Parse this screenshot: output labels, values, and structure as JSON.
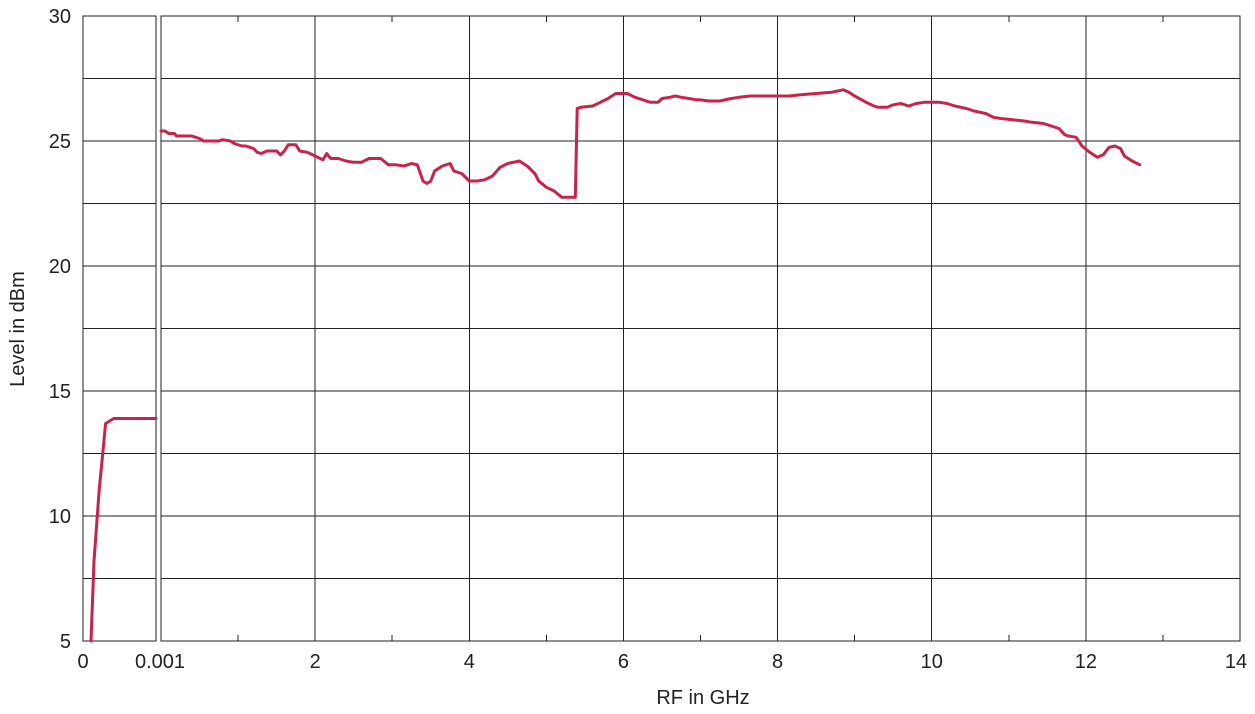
{
  "chart_data": {
    "type": "line",
    "xlabel": "RF in GHz",
    "ylabel": "Level in dBm",
    "ylim": [
      5,
      30
    ],
    "y_ticks": [
      5,
      10,
      15,
      20,
      25,
      30
    ],
    "grid": true,
    "x_axis_note": "broken axis: 0 to 0.001 GHz panel, then 0.001 to 14 GHz",
    "low_panel": {
      "xlim": [
        0,
        0.001
      ],
      "x_ticks": [
        {
          "value": 0,
          "label": "0"
        },
        {
          "value": 0.001,
          "label": "0.001"
        }
      ]
    },
    "main_panel": {
      "xlim": [
        0,
        14
      ],
      "x_ticks": [
        {
          "value": 2,
          "label": "2"
        },
        {
          "value": 4,
          "label": "4"
        },
        {
          "value": 6,
          "label": "6"
        },
        {
          "value": 8,
          "label": "8"
        },
        {
          "value": 10,
          "label": "10"
        },
        {
          "value": 12,
          "label": "12"
        },
        {
          "value": 14,
          "label": "14"
        }
      ]
    },
    "series": [
      {
        "color": "#c8234a",
        "low_points": [
          [
            0.00011,
            5.0
          ],
          [
            0.00015,
            8.2
          ],
          [
            0.00022,
            11.0
          ],
          [
            0.00031,
            13.7
          ],
          [
            0.00042,
            13.9
          ],
          [
            0.001,
            13.9
          ]
        ],
        "main_points": [
          [
            0.0,
            25.4
          ],
          [
            0.1,
            25.4
          ],
          [
            0.2,
            25.3
          ],
          [
            0.35,
            25.3
          ],
          [
            0.4,
            25.2
          ],
          [
            0.5,
            25.2
          ],
          [
            0.6,
            25.2
          ],
          [
            0.8,
            25.2
          ],
          [
            1.0,
            25.1
          ],
          [
            1.1,
            25.0
          ],
          [
            1.3,
            25.0
          ],
          [
            1.5,
            25.0
          ],
          [
            1.6,
            25.05
          ],
          [
            1.8,
            25.0
          ],
          [
            1.9,
            24.9
          ],
          [
            2.1,
            24.8
          ],
          [
            2.2,
            24.8
          ],
          [
            2.4,
            24.7
          ],
          [
            2.5,
            24.55
          ],
          [
            2.6,
            24.5
          ],
          [
            2.75,
            24.6
          ],
          [
            3.0,
            24.6
          ],
          [
            3.1,
            24.45
          ],
          [
            3.2,
            24.6
          ],
          [
            3.3,
            24.85
          ],
          [
            3.5,
            24.85
          ],
          [
            3.6,
            24.6
          ],
          [
            3.8,
            24.55
          ],
          [
            4.0,
            24.4
          ],
          [
            4.2,
            24.25
          ],
          [
            4.3,
            24.5
          ],
          [
            4.4,
            24.3
          ],
          [
            4.6,
            24.3
          ],
          [
            4.8,
            24.2
          ],
          [
            5.0,
            24.15
          ],
          [
            5.2,
            24.15
          ],
          [
            5.4,
            24.3
          ],
          [
            5.7,
            24.3
          ],
          [
            5.9,
            24.05
          ],
          [
            6.1,
            24.05
          ],
          [
            6.3,
            24.0
          ],
          [
            6.4,
            24.05
          ],
          [
            6.5,
            24.1
          ],
          [
            6.65,
            24.05
          ],
          [
            6.8,
            23.4
          ],
          [
            6.9,
            23.3
          ],
          [
            7.0,
            23.4
          ],
          [
            7.1,
            23.8
          ],
          [
            7.3,
            24.0
          ],
          [
            7.5,
            24.1
          ],
          [
            7.6,
            23.8
          ],
          [
            7.8,
            23.7
          ],
          [
            8.0,
            23.4
          ],
          [
            8.2,
            23.4
          ],
          [
            8.4,
            23.45
          ],
          [
            8.6,
            23.6
          ],
          [
            8.8,
            23.95
          ],
          [
            9.0,
            24.1
          ],
          [
            9.3,
            24.2
          ],
          [
            9.5,
            24.0
          ],
          [
            9.7,
            23.7
          ],
          [
            9.8,
            23.4
          ],
          [
            10.0,
            23.15
          ],
          [
            10.2,
            23.0
          ],
          [
            10.4,
            22.75
          ],
          [
            10.75,
            22.75
          ],
          [
            10.8,
            26.3
          ],
          [
            10.9,
            26.35
          ],
          [
            11.2,
            26.4
          ],
          [
            11.4,
            26.55
          ],
          [
            11.6,
            26.7
          ],
          [
            11.8,
            26.9
          ],
          [
            12.1,
            26.9
          ],
          [
            12.3,
            26.75
          ],
          [
            12.5,
            26.65
          ],
          [
            12.7,
            26.55
          ],
          [
            12.9,
            26.55
          ],
          [
            13.0,
            26.7
          ],
          [
            13.2,
            26.75
          ],
          [
            13.35,
            26.8
          ],
          [
            13.5,
            26.75
          ],
          [
            13.7,
            26.7
          ],
          [
            13.9,
            26.65
          ],
          [
            14.0,
            26.65
          ],
          [
            14.2,
            26.6
          ],
          [
            14.5,
            26.6
          ],
          [
            14.8,
            26.7
          ],
          [
            15.0,
            26.75
          ],
          [
            15.3,
            26.8
          ],
          [
            15.8,
            26.8
          ],
          [
            16.3,
            26.8
          ],
          [
            16.6,
            26.85
          ],
          [
            17.0,
            26.9
          ],
          [
            17.4,
            26.95
          ],
          [
            17.7,
            27.05
          ],
          [
            17.85,
            26.95
          ],
          [
            18.0,
            26.8
          ],
          [
            18.3,
            26.55
          ],
          [
            18.5,
            26.4
          ],
          [
            18.6,
            26.35
          ],
          [
            18.85,
            26.35
          ],
          [
            19.0,
            26.45
          ],
          [
            19.2,
            26.5
          ],
          [
            19.4,
            26.4
          ],
          [
            19.6,
            26.5
          ],
          [
            19.8,
            26.55
          ],
          [
            20.2,
            26.55
          ],
          [
            20.4,
            26.5
          ],
          [
            20.6,
            26.4
          ],
          [
            20.9,
            26.3
          ],
          [
            21.1,
            26.2
          ],
          [
            21.4,
            26.1
          ],
          [
            21.6,
            25.95
          ],
          [
            21.8,
            25.9
          ],
          [
            22.1,
            25.85
          ],
          [
            22.4,
            25.8
          ],
          [
            22.6,
            25.75
          ],
          [
            22.9,
            25.7
          ],
          [
            23.1,
            25.6
          ],
          [
            23.3,
            25.5
          ],
          [
            23.45,
            25.25
          ],
          [
            23.55,
            25.2
          ],
          [
            23.75,
            25.15
          ],
          [
            23.9,
            24.8
          ],
          [
            24.1,
            24.55
          ],
          [
            24.3,
            24.35
          ],
          [
            24.45,
            24.45
          ],
          [
            24.6,
            24.75
          ],
          [
            24.75,
            24.8
          ],
          [
            24.9,
            24.7
          ],
          [
            25.0,
            24.4
          ],
          [
            25.2,
            24.2
          ],
          [
            25.4,
            24.05
          ]
        ]
      }
    ]
  }
}
